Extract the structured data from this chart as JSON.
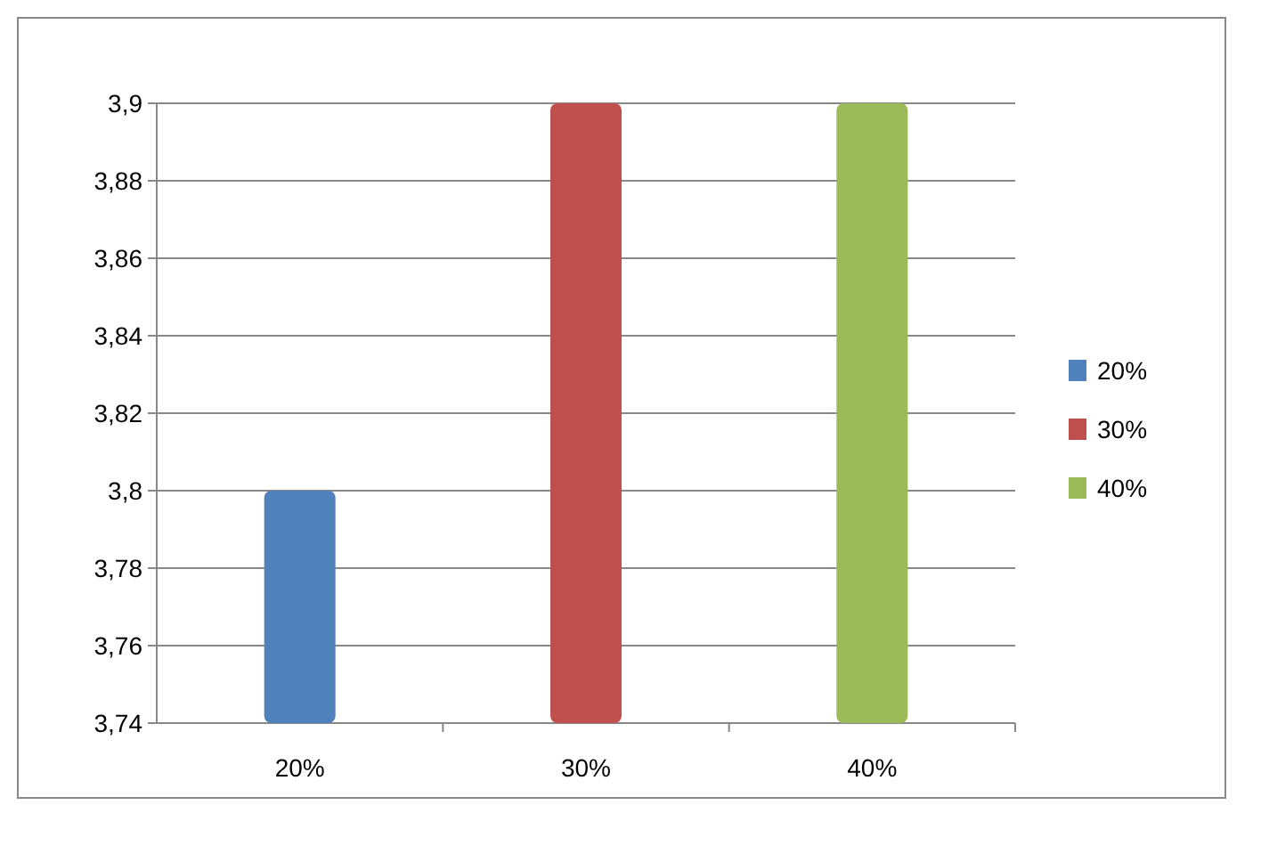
{
  "chart_data": {
    "type": "bar",
    "categories": [
      "20%",
      "30%",
      "40%"
    ],
    "series": [
      {
        "name": "20%",
        "color": "#4f81bd",
        "values": [
          3.8,
          null,
          null
        ]
      },
      {
        "name": "30%",
        "color": "#c0504d",
        "values": [
          null,
          3.9,
          null
        ]
      },
      {
        "name": "40%",
        "color": "#9bbb59",
        "values": [
          null,
          null,
          3.9
        ]
      }
    ],
    "ylim": [
      3.74,
      3.9
    ],
    "yticks": [
      {
        "value": 3.74,
        "label": "3,74"
      },
      {
        "value": 3.76,
        "label": "3,76"
      },
      {
        "value": 3.78,
        "label": "3,78"
      },
      {
        "value": 3.8,
        "label": "3,8"
      },
      {
        "value": 3.82,
        "label": "3,82"
      },
      {
        "value": 3.84,
        "label": "3,84"
      },
      {
        "value": 3.86,
        "label": "3,86"
      },
      {
        "value": 3.88,
        "label": "3,88"
      },
      {
        "value": 3.9,
        "label": "3,9"
      }
    ],
    "grid": "y",
    "legend": "right"
  }
}
